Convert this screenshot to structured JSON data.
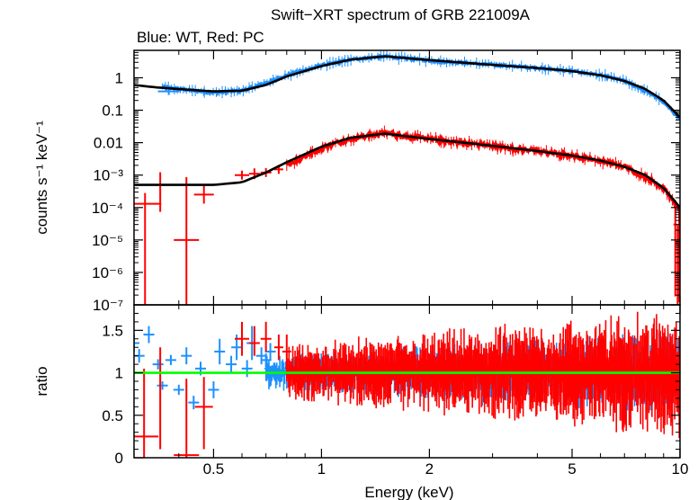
{
  "chart_data": {
    "type": "scatter",
    "title": "Swift−XRT spectrum of GRB 221009A",
    "subtitle": "Blue: WT, Red: PC",
    "xlabel": "Energy (keV)",
    "x_scale": "log",
    "xlim": [
      0.3,
      10
    ],
    "x_tick_labels": [
      "0.5",
      "1",
      "2",
      "5",
      "10"
    ],
    "x_tick_values": [
      0.5,
      1,
      2,
      5,
      10
    ],
    "colors": {
      "WT": "#1e90ff",
      "PC": "#ff0000",
      "model": "#000000",
      "unity": "#00ff00"
    },
    "panels": [
      {
        "name": "spectrum",
        "ylabel": "counts s⁻¹ keV⁻¹",
        "y_scale": "log",
        "ylim": [
          1e-07,
          7
        ],
        "y_tick_labels": [
          "1",
          "0.1",
          "0.01",
          "10⁻³",
          "10⁻⁴",
          "10⁻⁵",
          "10⁻⁶",
          "10⁻⁷"
        ],
        "y_tick_values": [
          1,
          0.1,
          0.01,
          0.001,
          0.0001,
          1e-05,
          1e-06,
          1e-07
        ],
        "series": [
          {
            "name": "WT",
            "x": [
              0.3,
              0.35,
              0.4,
              0.5,
              0.6,
              0.7,
              0.8,
              1.0,
              1.2,
              1.5,
              2.0,
              3.0,
              4.0,
              5.0,
              6.0,
              7.0,
              8.0,
              9.0,
              10.0
            ],
            "y": [
              0.9,
              0.55,
              0.45,
              0.35,
              0.4,
              0.7,
              1.2,
              2.4,
              3.6,
              4.6,
              3.4,
              2.5,
              2.0,
              1.6,
              1.2,
              0.8,
              0.4,
              0.18,
              0.05
            ]
          },
          {
            "name": "PC",
            "x": [
              0.32,
              0.4,
              0.47,
              0.6,
              0.7,
              0.8,
              1.0,
              1.2,
              1.5,
              2.0,
              3.0,
              4.0,
              5.0,
              6.0,
              7.0,
              8.0,
              9.0,
              10.0
            ],
            "y": [
              0.00013,
              1e-05,
              0.00025,
              0.001,
              0.0012,
              0.002,
              0.007,
              0.013,
              0.02,
              0.013,
              0.008,
              0.0055,
              0.004,
              0.0028,
              0.0018,
              0.0009,
              0.0004,
              8e-05
            ]
          },
          {
            "name": "WT model",
            "x": [
              0.3,
              0.35,
              0.4,
              0.5,
              0.6,
              0.7,
              0.8,
              1.0,
              1.2,
              1.5,
              2.0,
              3.0,
              4.0,
              5.0,
              6.0,
              7.0,
              8.0,
              9.0,
              10.0
            ],
            "y": [
              0.6,
              0.5,
              0.45,
              0.38,
              0.4,
              0.6,
              1.1,
              2.3,
              3.6,
              4.6,
              3.5,
              2.5,
              2.0,
              1.6,
              1.2,
              0.8,
              0.45,
              0.2,
              0.06
            ]
          },
          {
            "name": "PC model",
            "x": [
              0.3,
              0.35,
              0.4,
              0.5,
              0.6,
              0.7,
              0.8,
              1.0,
              1.2,
              1.5,
              2.0,
              3.0,
              4.0,
              5.0,
              6.0,
              7.0,
              8.0,
              9.0,
              10.0
            ],
            "y": [
              0.0005,
              0.0005,
              0.0005,
              0.0005,
              0.0006,
              0.0012,
              0.0025,
              0.0075,
              0.014,
              0.019,
              0.013,
              0.008,
              0.0055,
              0.004,
              0.0028,
              0.0018,
              0.001,
              0.0004,
              0.0001
            ]
          }
        ]
      },
      {
        "name": "ratio",
        "ylabel": "ratio",
        "y_scale": "linear",
        "ylim": [
          0,
          1.8
        ],
        "y_tick_labels": [
          "0",
          "0.5",
          "1",
          "1.5"
        ],
        "y_tick_values": [
          0,
          0.5,
          1,
          1.5
        ],
        "reference_line": 1,
        "series": [
          {
            "name": "WT",
            "x": [
              0.3,
              0.32,
              0.35,
              0.38,
              0.4,
              0.45,
              0.5,
              0.55,
              0.6,
              0.65,
              0.7,
              0.8
            ],
            "y": [
              1.35,
              1.3,
              1.1,
              1.1,
              1.2,
              0.8,
              1.1,
              1.05,
              1.25,
              1.3,
              1.15,
              1.2
            ]
          },
          {
            "name": "PC",
            "x": [
              0.32,
              0.4,
              0.47,
              0.6,
              0.7,
              0.8,
              1.0,
              1.5,
              2.0,
              3.0,
              5.0,
              8.0,
              10.0
            ],
            "y": [
              0.25,
              0.03,
              0.6,
              1.4,
              1.35,
              1.25,
              1.0,
              1.0,
              1.0,
              1.0,
              1.0,
              1.0,
              0.9
            ]
          }
        ]
      }
    ]
  }
}
